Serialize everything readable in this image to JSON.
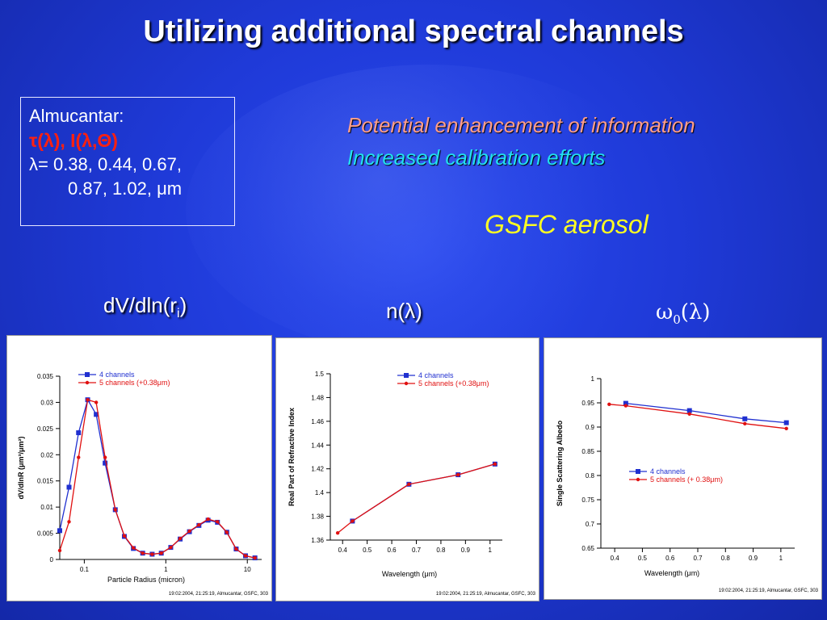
{
  "title": "Utilizing additional spectral channels",
  "almucantar": {
    "heading": "Almucantar:",
    "quantities": "τ(λ), I(λ,Θ)",
    "wavelengths_line1": "λ= 0.38, 0.44, 0.67,",
    "wavelengths_line2": "0.87, 1.02, μm"
  },
  "notes": {
    "potential": "Potential enhancement of information",
    "calibration": "Increased calibration efforts",
    "gsfc": "GSFC aerosol"
  },
  "panel_labels": {
    "size": "dV/dln(r",
    "size_sub": "i",
    "size_end": ")",
    "refr": "n(λ)",
    "albedo": "ω",
    "albedo_sub": "0",
    "albedo_end": "(λ)"
  },
  "colors": {
    "series4": "#2030d0",
    "series5": "#e01010"
  },
  "chart_data": [
    {
      "type": "line",
      "name": "size_distribution",
      "xlabel": "Particle Radius (micron)",
      "ylabel": "dV/dlnR (μm³/μm²)",
      "xscale": "log",
      "xlim": [
        0.05,
        15
      ],
      "ylim": [
        0,
        0.035
      ],
      "xticks": [
        0.1,
        1,
        10
      ],
      "xticklabels": [
        "0.1",
        "1",
        "10"
      ],
      "yticks": [
        0,
        0.005,
        0.01,
        0.015,
        0.02,
        0.025,
        0.03,
        0.035
      ],
      "yticklabels": [
        "0",
        "0.005",
        "0.01",
        "0.015",
        "0.02",
        "0.025",
        "0.03",
        "0.035"
      ],
      "footer": "19:02:2004, 21:25:19, Almucantar, GSFC, 303",
      "series": [
        {
          "name": "4 channels",
          "color": "#2030d0",
          "x": [
            0.05,
            0.065,
            0.085,
            0.11,
            0.14,
            0.18,
            0.24,
            0.31,
            0.4,
            0.52,
            0.68,
            0.88,
            1.15,
            1.5,
            1.95,
            2.55,
            3.3,
            4.3,
            5.6,
            7.3,
            9.5,
            12.4
          ],
          "y": [
            0.0055,
            0.0138,
            0.0242,
            0.0305,
            0.0277,
            0.0184,
            0.0095,
            0.0044,
            0.0021,
            0.0012,
            0.001,
            0.0012,
            0.0023,
            0.0039,
            0.0053,
            0.0065,
            0.0075,
            0.0071,
            0.0052,
            0.002,
            0.0007,
            0.0003
          ]
        },
        {
          "name": "5 channels (+0.38μm)",
          "color": "#e01010",
          "x": [
            0.05,
            0.065,
            0.085,
            0.11,
            0.14,
            0.18,
            0.24,
            0.31,
            0.4,
            0.52,
            0.68,
            0.88,
            1.15,
            1.5,
            1.95,
            2.55,
            3.3,
            4.3,
            5.6,
            7.3,
            9.5,
            12.4
          ],
          "y": [
            0.0017,
            0.0072,
            0.0195,
            0.0305,
            0.03,
            0.0195,
            0.0095,
            0.0045,
            0.0022,
            0.0012,
            0.001,
            0.0012,
            0.0023,
            0.004,
            0.0054,
            0.0066,
            0.0077,
            0.0072,
            0.0052,
            0.002,
            0.0007,
            0.0003
          ]
        }
      ]
    },
    {
      "type": "line",
      "name": "refractive_index",
      "xlabel": "Wavelength (μm)",
      "ylabel": "Real Part of Refractive Index",
      "xlim": [
        0.35,
        1.05
      ],
      "ylim": [
        1.36,
        1.5
      ],
      "xticks": [
        0.4,
        0.5,
        0.6,
        0.7,
        0.8,
        0.9,
        1
      ],
      "xticklabels": [
        "0.4",
        "0.5",
        "0.6",
        "0.7",
        "0.8",
        "0.9",
        "1"
      ],
      "yticks": [
        1.36,
        1.38,
        1.4,
        1.42,
        1.44,
        1.46,
        1.48,
        1.5
      ],
      "yticklabels": [
        "1.36",
        "1.38",
        "1.4",
        "1.42",
        "1.44",
        "1.46",
        "1.48",
        "1.5"
      ],
      "footer": "19:02:2004, 21:25:19, Almucantar, GSFC, 303",
      "series": [
        {
          "name": "4 channels",
          "color": "#2030d0",
          "x": [
            0.44,
            0.67,
            0.87,
            1.02
          ],
          "y": [
            1.376,
            1.407,
            1.415,
            1.424
          ]
        },
        {
          "name": "5 channels (+0.38μm)",
          "color": "#e01010",
          "x": [
            0.38,
            0.44,
            0.67,
            0.87,
            1.02
          ],
          "y": [
            1.366,
            1.376,
            1.407,
            1.415,
            1.424
          ]
        }
      ]
    },
    {
      "type": "line",
      "name": "single_scattering_albedo",
      "xlabel": "Wavelength (μm)",
      "ylabel": "Single Scattering Albedo",
      "xlim": [
        0.35,
        1.05
      ],
      "ylim": [
        0.65,
        1.0
      ],
      "xticks": [
        0.4,
        0.5,
        0.6,
        0.7,
        0.8,
        0.9,
        1
      ],
      "xticklabels": [
        "0.4",
        "0.5",
        "0.6",
        "0.7",
        "0.8",
        "0.9",
        "1"
      ],
      "yticks": [
        0.65,
        0.7,
        0.75,
        0.8,
        0.85,
        0.9,
        0.95,
        1
      ],
      "yticklabels": [
        "0.65",
        "0.7",
        "0.75",
        "0.8",
        "0.85",
        "0.9",
        "0.95",
        "1"
      ],
      "footer": "19:02:2004, 21:25:19, Almucantar, GSFC, 303",
      "series": [
        {
          "name": "4 channels",
          "color": "#2030d0",
          "x": [
            0.44,
            0.67,
            0.87,
            1.02
          ],
          "y": [
            0.949,
            0.934,
            0.917,
            0.909
          ]
        },
        {
          "name": "5 channels (+ 0.38μm)",
          "color": "#e01010",
          "x": [
            0.38,
            0.44,
            0.67,
            0.87,
            1.02
          ],
          "y": [
            0.947,
            0.944,
            0.927,
            0.907,
            0.897
          ]
        }
      ]
    }
  ]
}
